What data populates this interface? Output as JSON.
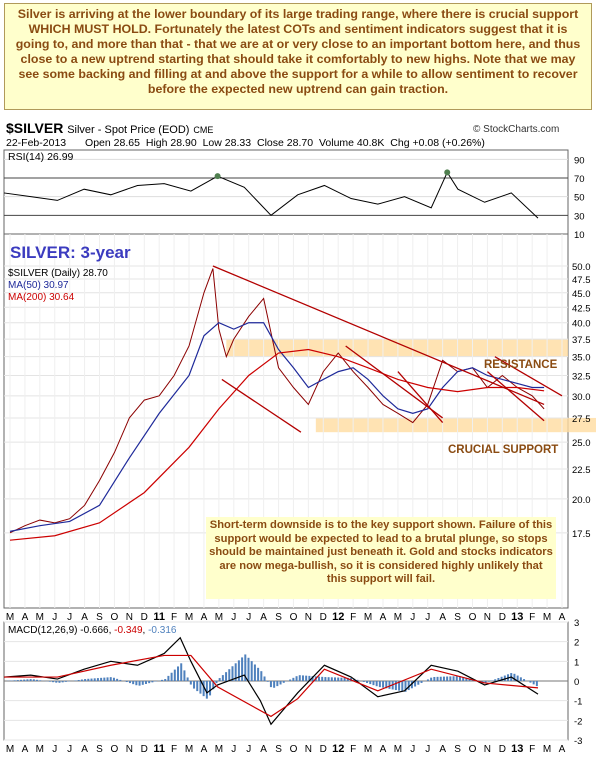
{
  "commentary_top": "Silver is arriving at the lower boundary of its large trading range, where there is crucial support WHICH MUST HOLD. Fortunately the latest COTs and sentiment indicators suggest that it is going to, and more than that - that we are at or very close to an important bottom here, and thus close to a new uptrend starting that should take it comfortably to new highs. Note that we may see some backing and filling at and above the support for a while to allow sentiment to recover before the expected new uptrend can gain traction.",
  "header": {
    "symbol": "$SILVER",
    "name": "Silver - Spot Price (EOD)",
    "exchange": "CME",
    "brand": "© StockCharts.com",
    "date": "22-Feb-2013",
    "open_label": "Open",
    "open": "28.65",
    "high_label": "High",
    "high": "28.90",
    "low_label": "Low",
    "low": "28.33",
    "close_label": "Close",
    "close": "28.70",
    "volume_label": "Volume",
    "volume": "40.8K",
    "chg_label": "Chg",
    "chg": "+0.08 (+0.26%)"
  },
  "chart_data": [
    {
      "type": "line",
      "panel": "RSI",
      "legend": "RSI(14) 26.99",
      "ylim": [
        10,
        100
      ],
      "yticks": [
        90,
        70,
        50,
        30,
        10
      ],
      "reference_lines": [
        70,
        30
      ],
      "series": [
        {
          "name": "RSI(14)",
          "color": "#000000",
          "x": [
            0,
            0.05,
            0.1,
            0.15,
            0.2,
            0.25,
            0.3,
            0.35,
            0.4,
            0.45,
            0.48,
            0.5,
            0.55,
            0.6,
            0.65,
            0.7,
            0.75,
            0.8,
            0.83,
            0.85,
            0.9,
            0.95,
            1.0
          ],
          "values": [
            54,
            50,
            46,
            58,
            52,
            62,
            64,
            56,
            72,
            60,
            42,
            30,
            52,
            62,
            48,
            42,
            50,
            38,
            76,
            58,
            44,
            54,
            27
          ]
        }
      ]
    },
    {
      "type": "line",
      "panel": "price",
      "title": "SILVER: 3-year",
      "legend": [
        "$SILVER (Daily) 28.70",
        "MA(50) 30.97",
        "MA(200) 30.64"
      ],
      "log_scale": true,
      "ylim": [
        15,
        50
      ],
      "yticks": [
        50.0,
        47.5,
        45.0,
        42.5,
        40.0,
        37.5,
        35.0,
        32.5,
        30.0,
        27.5,
        25.0,
        22.5,
        20.0,
        17.5
      ],
      "x_months": [
        "M",
        "A",
        "M",
        "J",
        "J",
        "A",
        "S",
        "O",
        "N",
        "D",
        "11",
        "F",
        "M",
        "A",
        "M",
        "J",
        "J",
        "A",
        "S",
        "O",
        "N",
        "D",
        "12",
        "F",
        "M",
        "A",
        "M",
        "J",
        "J",
        "A",
        "S",
        "O",
        "N",
        "D",
        "13",
        "F",
        "M",
        "A"
      ],
      "series": [
        {
          "name": "$SILVER (Daily)",
          "color": "#8b0000",
          "x": [
            0,
            1,
            2,
            3,
            4,
            5,
            6,
            7,
            8,
            9,
            10,
            11,
            12,
            13,
            13.6,
            14,
            14.5,
            15,
            16,
            17,
            18,
            19,
            20,
            21,
            22,
            23,
            24,
            25,
            26,
            27,
            28,
            29,
            30,
            31,
            32,
            33,
            34,
            35,
            35.8
          ],
          "values": [
            17.5,
            18.0,
            18.4,
            18.2,
            18.5,
            19.5,
            21.5,
            24.0,
            27.5,
            29.5,
            30.0,
            32.5,
            36.5,
            45.0,
            49.5,
            39.0,
            35.0,
            37.5,
            41.0,
            44.0,
            33.5,
            31.0,
            29.0,
            33.0,
            35.5,
            33.0,
            31.0,
            29.0,
            28.0,
            27.0,
            29.0,
            34.5,
            33.0,
            33.5,
            31.0,
            32.5,
            31.0,
            30.0,
            28.5
          ]
        },
        {
          "name": "MA(50)",
          "color": "#1f2a9a",
          "x": [
            0,
            2,
            4,
            6,
            8,
            10,
            12,
            13,
            14,
            15,
            16,
            17,
            18,
            19,
            20,
            21,
            22,
            23,
            24,
            25,
            26,
            27,
            28,
            29,
            30,
            31,
            32,
            33,
            34,
            35,
            35.8
          ],
          "values": [
            17.6,
            18.0,
            18.3,
            19.5,
            23.5,
            28.0,
            32.5,
            38.0,
            40.0,
            39.0,
            40.0,
            40.0,
            36.0,
            33.5,
            31.0,
            32.0,
            33.0,
            33.5,
            32.0,
            30.0,
            28.5,
            28.0,
            28.5,
            31.0,
            33.0,
            33.5,
            32.5,
            32.0,
            31.5,
            31.0,
            31.0
          ]
        },
        {
          "name": "MA(200)",
          "color": "#cc0000",
          "x": [
            0,
            3,
            6,
            9,
            12,
            14,
            16,
            18,
            20,
            22,
            24,
            26,
            28,
            30,
            32,
            34,
            35.8
          ],
          "values": [
            17.0,
            17.3,
            18.2,
            20.5,
            24.5,
            28.5,
            32.5,
            35.5,
            36.0,
            35.0,
            33.5,
            32.0,
            31.0,
            30.5,
            31.0,
            31.0,
            30.6
          ]
        }
      ],
      "annotations": [
        "RESISTANCE",
        "CRUCIAL SUPPORT"
      ],
      "commentary": "Short-term downside is to the key support shown. Failure of this support would be expected to lead to a brutal plunge, so stops should be maintained just beneath it. Gold and stocks indicators are now mega-bullish, so it is considered highly unlikely that this support will fail."
    },
    {
      "type": "line",
      "panel": "MACD",
      "legend_parts": [
        "MACD(12,26,9)",
        "-0.666",
        "-0.349",
        "-0.316"
      ],
      "ylim": [
        -3,
        3
      ],
      "yticks": [
        3,
        2,
        1,
        0,
        -1,
        -2,
        -3
      ],
      "series": [
        {
          "name": "MACD(12,26,9)",
          "color": "#000000",
          "x": [
            0,
            0.05,
            0.1,
            0.15,
            0.2,
            0.25,
            0.3,
            0.33,
            0.35,
            0.38,
            0.4,
            0.45,
            0.48,
            0.5,
            0.55,
            0.6,
            0.65,
            0.7,
            0.75,
            0.8,
            0.85,
            0.9,
            0.95,
            1.0
          ],
          "values": [
            0.2,
            0.3,
            0.1,
            0.6,
            1.0,
            0.8,
            1.4,
            2.2,
            1.0,
            -0.6,
            -0.2,
            0.3,
            -1.0,
            -2.2,
            -0.6,
            0.8,
            0.2,
            -0.8,
            -0.5,
            0.8,
            0.5,
            -0.2,
            0.2,
            -0.67
          ]
        },
        {
          "name": "signal",
          "color": "#cc0000",
          "x": [
            0,
            0.1,
            0.2,
            0.3,
            0.35,
            0.4,
            0.5,
            0.55,
            0.6,
            0.7,
            0.8,
            0.9,
            1.0
          ],
          "values": [
            0.2,
            0.2,
            0.8,
            1.3,
            1.3,
            -0.3,
            -1.8,
            -0.9,
            0.6,
            -0.5,
            0.6,
            -0.1,
            -0.35
          ]
        }
      ],
      "x_months": [
        "M",
        "A",
        "M",
        "J",
        "J",
        "A",
        "S",
        "O",
        "N",
        "D",
        "11",
        "F",
        "M",
        "A",
        "M",
        "J",
        "J",
        "A",
        "S",
        "O",
        "N",
        "D",
        "12",
        "F",
        "M",
        "A",
        "M",
        "J",
        "J",
        "A",
        "S",
        "O",
        "N",
        "D",
        "13",
        "F",
        "M",
        "A"
      ]
    }
  ],
  "colors": {
    "note_bg": "#ffffcc",
    "note_text": "#8a4b12",
    "channel": "#b30000",
    "band": "#ffdca0",
    "rsi_fill": "#4f7f4f",
    "histogram": "#4f81bd"
  }
}
